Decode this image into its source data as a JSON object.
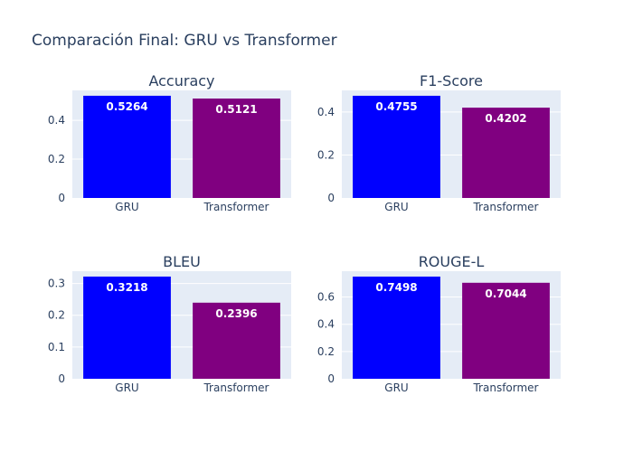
{
  "title": "Comparación Final: GRU vs Transformer",
  "colors": {
    "GRU": "#0000ff",
    "Transformer": "#800080",
    "plot_background": "#e5ecf6",
    "text": "#2a3f5f"
  },
  "chart_data": [
    {
      "type": "bar",
      "title": "Accuracy",
      "categories": [
        "GRU",
        "Transformer"
      ],
      "values": [
        0.5264,
        0.5121
      ],
      "value_labels": [
        "0.5264",
        "0.5121"
      ],
      "yticks": [
        0,
        0.2,
        0.4
      ],
      "ytick_labels": [
        "0",
        "0.2",
        "0.4"
      ],
      "ylim": [
        0,
        0.554
      ],
      "grid": true
    },
    {
      "type": "bar",
      "title": "F1-Score",
      "categories": [
        "GRU",
        "Transformer"
      ],
      "values": [
        0.4755,
        0.4202
      ],
      "value_labels": [
        "0.4755",
        "0.4202"
      ],
      "yticks": [
        0,
        0.2,
        0.4
      ],
      "ytick_labels": [
        "0",
        "0.2",
        "0.4"
      ],
      "ylim": [
        0,
        0.5005
      ],
      "grid": true
    },
    {
      "type": "bar",
      "title": "BLEU",
      "categories": [
        "GRU",
        "Transformer"
      ],
      "values": [
        0.3218,
        0.2396
      ],
      "value_labels": [
        "0.3218",
        "0.2396"
      ],
      "yticks": [
        0,
        0.1,
        0.2,
        0.3
      ],
      "ytick_labels": [
        "0",
        "0.1",
        "0.2",
        "0.3"
      ],
      "ylim": [
        0,
        0.3387
      ],
      "grid": true
    },
    {
      "type": "bar",
      "title": "ROUGE-L",
      "categories": [
        "GRU",
        "Transformer"
      ],
      "values": [
        0.7498,
        0.7044
      ],
      "value_labels": [
        "0.7498",
        "0.7044"
      ],
      "yticks": [
        0,
        0.2,
        0.4,
        0.6
      ],
      "ytick_labels": [
        "0",
        "0.2",
        "0.4",
        "0.6"
      ],
      "ylim": [
        0,
        0.7893
      ],
      "grid": true
    }
  ]
}
